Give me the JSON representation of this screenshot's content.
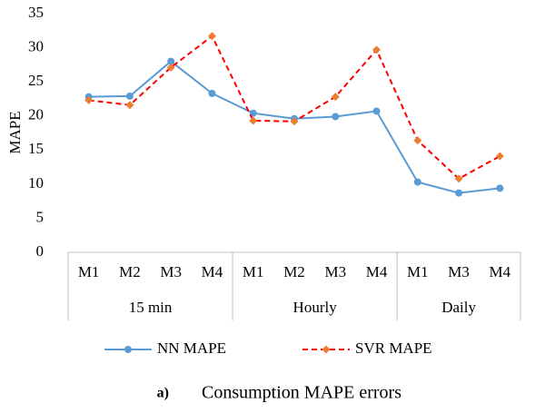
{
  "chart_data": {
    "type": "line",
    "y_label": "MAPE",
    "caption_label": "a)",
    "caption": "Consumption MAPE errors",
    "groups": [
      {
        "name": "15 min",
        "categories": [
          "M1",
          "M2",
          "M3",
          "M4"
        ]
      },
      {
        "name": "Hourly",
        "categories": [
          "M1",
          "M2",
          "M3",
          "M4"
        ]
      },
      {
        "name": "Daily",
        "categories": [
          "M1",
          "M3",
          "M4"
        ]
      }
    ],
    "series": [
      {
        "name": "NN MAPE",
        "color": "#5b9bd5",
        "marker": "circle",
        "dash": false,
        "values": [
          22.8,
          22.9,
          28.0,
          23.3,
          20.4,
          19.6,
          19.9,
          20.7,
          10.3,
          8.7,
          9.4
        ]
      },
      {
        "name": "SVR MAPE",
        "color": "#ff0000",
        "marker_color": "#ed7d31",
        "marker": "diamond",
        "dash": true,
        "values": [
          22.3,
          21.6,
          27.1,
          31.7,
          19.3,
          19.2,
          22.8,
          29.7,
          16.4,
          10.8,
          14.1
        ]
      }
    ],
    "ylim": [
      0,
      35
    ],
    "yticks": [
      0,
      5,
      10,
      15,
      20,
      25,
      30,
      35
    ],
    "grid": false
  }
}
